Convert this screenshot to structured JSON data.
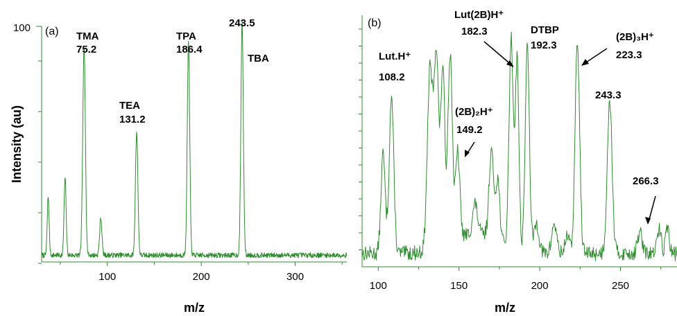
{
  "figure": {
    "y_axis_title": "Intensity (au)",
    "line_color": "#2e8b2e"
  },
  "chart_data": [
    {
      "type": "line",
      "panel_label": "(a)",
      "xlabel": "m/z",
      "ylabel": "Intensity (au)",
      "xlim": [
        30,
        355
      ],
      "ylim": [
        0,
        100
      ],
      "x_ticks": [
        100,
        200,
        300
      ],
      "y_ticks": [
        100
      ],
      "grid": false,
      "baseline": 2,
      "peaks": [
        {
          "x": 37,
          "y": 25,
          "w": 1.0
        },
        {
          "x": 55,
          "y": 33,
          "w": 1.1
        },
        {
          "x": 75.2,
          "y": 89,
          "w": 1.4
        },
        {
          "x": 93,
          "y": 16,
          "w": 1.2
        },
        {
          "x": 131.2,
          "y": 53,
          "w": 1.3
        },
        {
          "x": 186.4,
          "y": 91,
          "w": 1.3
        },
        {
          "x": 243.5,
          "y": 100,
          "w": 1.3
        }
      ],
      "annotations": [
        {
          "text": "TMA",
          "x": 75.2
        },
        {
          "text": "75.2",
          "x": 75.2
        },
        {
          "text": "TEA",
          "x": 131.2
        },
        {
          "text": "131.2",
          "x": 131.2
        },
        {
          "text": "TPA",
          "x": 186.4
        },
        {
          "text": "186.4",
          "x": 186.4
        },
        {
          "text": "243.5",
          "x": 243.5
        },
        {
          "text": "TBA",
          "x": 243.5
        }
      ]
    },
    {
      "type": "line",
      "panel_label": "(b)",
      "xlabel": "m/z",
      "xlim": [
        90,
        285
      ],
      "ylim": [
        0,
        100
      ],
      "x_ticks": [
        100,
        150,
        200,
        250
      ],
      "grid": false,
      "baseline": 4,
      "peaks": [
        {
          "x": 103,
          "y": 40,
          "w": 1.3
        },
        {
          "x": 108.2,
          "y": 63,
          "w": 1.4
        },
        {
          "x": 132,
          "y": 72,
          "w": 1.6
        },
        {
          "x": 136,
          "y": 78,
          "w": 1.5
        },
        {
          "x": 140,
          "y": 71,
          "w": 1.2
        },
        {
          "x": 144.5,
          "y": 77,
          "w": 1.4
        },
        {
          "x": 149.2,
          "y": 35,
          "w": 1.3
        },
        {
          "x": 160,
          "y": 12,
          "w": 1.5
        },
        {
          "x": 170,
          "y": 35,
          "w": 1.4
        },
        {
          "x": 174,
          "y": 25,
          "w": 1.3
        },
        {
          "x": 182.3,
          "y": 84,
          "w": 1.3
        },
        {
          "x": 186,
          "y": 77,
          "w": 1.1
        },
        {
          "x": 192.3,
          "y": 82,
          "w": 1.3
        },
        {
          "x": 198,
          "y": 12,
          "w": 1.5
        },
        {
          "x": 209,
          "y": 12,
          "w": 1.5
        },
        {
          "x": 217,
          "y": 8,
          "w": 1.2
        },
        {
          "x": 223.3,
          "y": 85,
          "w": 1.4
        },
        {
          "x": 243.3,
          "y": 62,
          "w": 1.5
        },
        {
          "x": 262,
          "y": 9,
          "w": 1.3
        },
        {
          "x": 274,
          "y": 10,
          "w": 1.2
        },
        {
          "x": 279,
          "y": 11,
          "w": 1.1
        }
      ],
      "annotations": [
        {
          "text": "Lut.H⁺",
          "x": 108.2
        },
        {
          "text": "108.2",
          "x": 108.2
        },
        {
          "text": "Lut(2B)H⁺",
          "x": 182.3
        },
        {
          "text": "182.3",
          "x": 182.3
        },
        {
          "text": "DTBP",
          "x": 192.3
        },
        {
          "text": "192.3",
          "x": 192.3
        },
        {
          "text": "(2B)₂H⁺",
          "x": 149.2
        },
        {
          "text": "149.2",
          "x": 149.2
        },
        {
          "text": "(2B)₃H⁺",
          "x": 223.3
        },
        {
          "text": "223.3",
          "x": 223.3
        },
        {
          "text": "243.3",
          "x": 243.3
        },
        {
          "text": "266.3",
          "x": 266.3
        }
      ]
    }
  ]
}
